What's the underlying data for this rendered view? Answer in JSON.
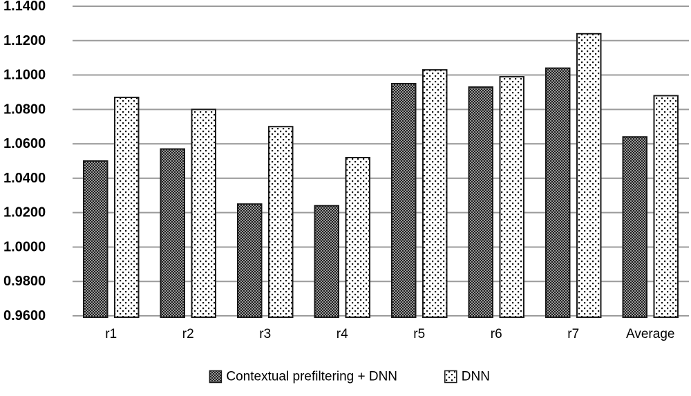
{
  "chart_data": {
    "type": "bar",
    "title": "",
    "xlabel": "",
    "ylabel": "",
    "categories": [
      "r1",
      "r2",
      "r3",
      "r4",
      "r5",
      "r6",
      "r7",
      "Average"
    ],
    "series": [
      {
        "name": "Contextual prefiltering + DNN",
        "pattern": "dense-checker",
        "values": [
          1.05,
          1.057,
          1.025,
          1.024,
          1.095,
          1.093,
          1.104,
          1.064
        ]
      },
      {
        "name": "DNN",
        "pattern": "sparse-dots",
        "values": [
          1.087,
          1.08,
          1.07,
          1.052,
          1.103,
          1.099,
          1.124,
          1.088
        ]
      }
    ],
    "ylim": [
      0.96,
      1.14
    ],
    "ytick_step": 0.02,
    "ytick_labels": [
      "1.1400",
      "1.1200",
      "1.1000",
      "1.0800",
      "1.0600",
      "1.0400",
      "1.0200",
      "1.0000",
      "0.9800",
      "0.9600"
    ],
    "grid": true,
    "legend_position": "bottom",
    "colors": {
      "background": "#ffffff",
      "gridline": "#9b9b9b",
      "bar_outline": "#1a1a1a",
      "text": "#000000",
      "dark_pattern_bg": "#9a9a9a",
      "dark_pattern_dot": "#1f1f1f",
      "light_pattern_bg": "#ffffff",
      "light_pattern_dot": "#111111"
    }
  }
}
